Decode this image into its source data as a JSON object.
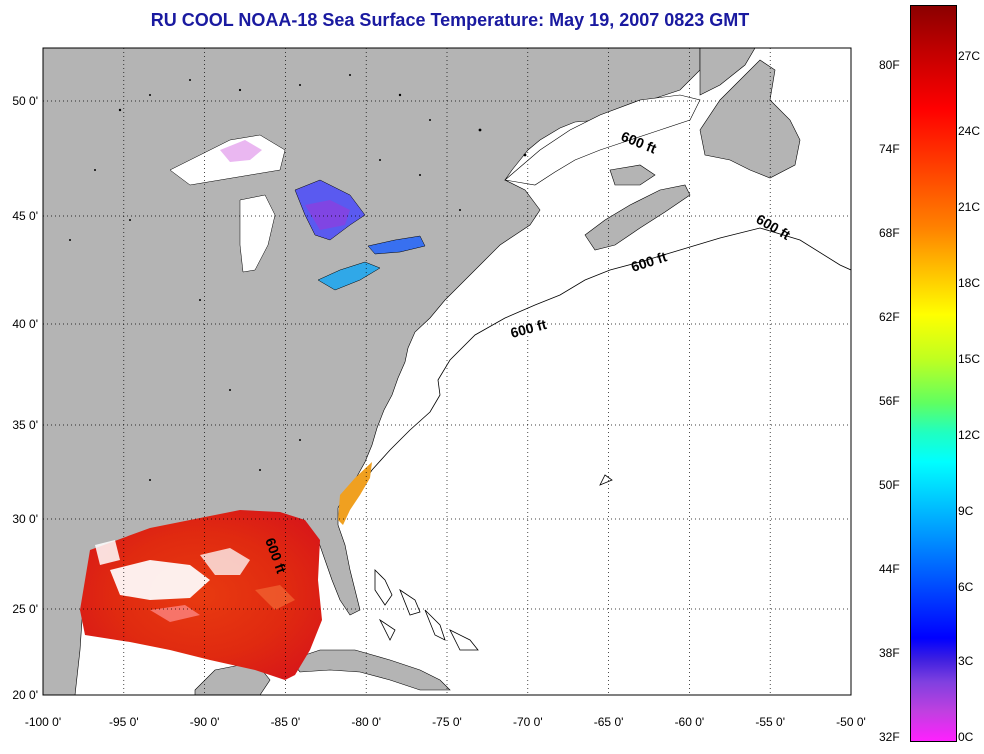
{
  "title": "RU COOL  NOAA-18  Sea Surface Temperature:  May 19, 2007 0823 GMT",
  "map": {
    "lon_ticks": [
      "-100 0'",
      "-95 0'",
      "-90 0'",
      "-85 0'",
      "-80 0'",
      "-75 0'",
      "-70 0'",
      "-65 0'",
      "-60 0'",
      "-55 0'",
      "-50 0'"
    ],
    "lat_ticks": [
      "50 0'",
      "45 0'",
      "40 0'",
      "35 0'",
      "30 0'",
      "25 0'",
      "20 0'"
    ],
    "contour_label": "600 ft",
    "land_color": "#b4b4b4",
    "water_color": "#ffffff"
  },
  "colorbar": {
    "fahrenheit_labels": [
      "80F",
      "74F",
      "68F",
      "62F",
      "56F",
      "50F",
      "44F",
      "38F",
      "32F"
    ],
    "celsius_labels": [
      "27C",
      "24C",
      "21C",
      "18C",
      "15C",
      "12C",
      "9C",
      "6C",
      "3C",
      "0C"
    ]
  }
}
